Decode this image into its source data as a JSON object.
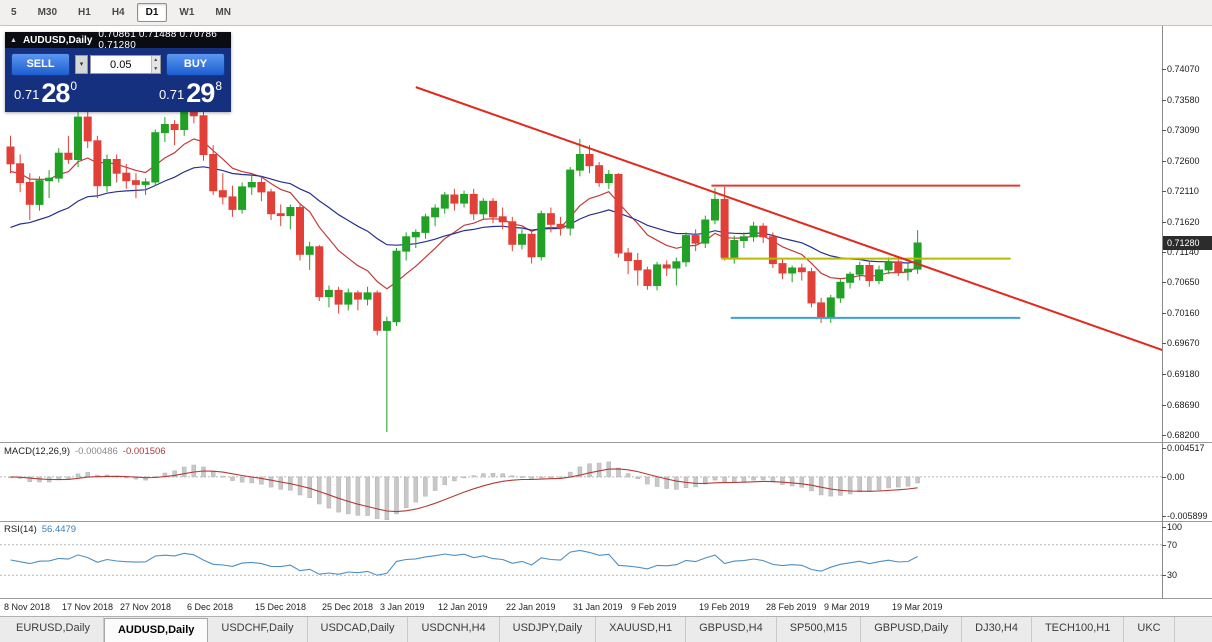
{
  "toolbar": {
    "timeframes": [
      {
        "label": "5",
        "active": false
      },
      {
        "label": "M30",
        "active": false
      },
      {
        "label": "H1",
        "active": false
      },
      {
        "label": "H4",
        "active": false
      },
      {
        "label": "D1",
        "active": true
      },
      {
        "label": "W1",
        "active": false
      },
      {
        "label": "MN",
        "active": false
      }
    ]
  },
  "trade_panel": {
    "symbol": "AUDUSD,Daily",
    "ohlc": "0.70861 0.71488 0.70786 0.71280",
    "sell_label": "SELL",
    "buy_label": "BUY",
    "volume": "0.05",
    "sell_price": {
      "base": "0.71",
      "big": "28",
      "sup": "0"
    },
    "buy_price": {
      "base": "0.71",
      "big": "29",
      "sup": "8"
    }
  },
  "colors": {
    "bull": "#21a126",
    "bear": "#e04038",
    "toolbar_bg": "#f1f0ee",
    "trade_panel_bg": "#15307e",
    "button_blue": "#2f6fd6",
    "badge_bg": "#2c2c2c"
  },
  "chart_data": {
    "type": "candlestick",
    "title": "AUDUSD,Daily",
    "current_price": "0.71280",
    "price_range": {
      "max": 0.7476,
      "min": 0.6809
    },
    "price_axis": [
      "0.74070",
      "0.73580",
      "0.73090",
      "0.72600",
      "0.72110",
      "0.71620",
      "0.71140",
      "0.70650",
      "0.70160",
      "0.69670",
      "0.69180",
      "0.68690",
      "0.68200"
    ],
    "x_labels": [
      [
        0,
        "8 Nov 2018"
      ],
      [
        6,
        "17 Nov 2018"
      ],
      [
        12,
        "27 Nov 2018"
      ],
      [
        19,
        "6 Dec 2018"
      ],
      [
        26,
        "15 Dec 2018"
      ],
      [
        33,
        "25 Dec 2018"
      ],
      [
        39,
        "3 Jan 2019"
      ],
      [
        45,
        "12 Jan 2019"
      ],
      [
        52,
        "22 Jan 2019"
      ],
      [
        59,
        "31 Jan 2019"
      ],
      [
        65,
        "9 Feb 2019"
      ],
      [
        72,
        "19 Feb 2019"
      ],
      [
        79,
        "28 Feb 2019"
      ],
      [
        85,
        "9 Mar 2019"
      ],
      [
        92,
        "19 Mar 2019"
      ]
    ],
    "candles": [
      [
        0.7282,
        0.73,
        0.724,
        0.7255
      ],
      [
        0.7255,
        0.727,
        0.721,
        0.7225
      ],
      [
        0.7225,
        0.724,
        0.7165,
        0.719
      ],
      [
        0.719,
        0.7235,
        0.718,
        0.7228
      ],
      [
        0.7228,
        0.7245,
        0.72,
        0.7232
      ],
      [
        0.7232,
        0.728,
        0.7225,
        0.7272
      ],
      [
        0.7272,
        0.73,
        0.7255,
        0.7262
      ],
      [
        0.7262,
        0.7338,
        0.725,
        0.733
      ],
      [
        0.733,
        0.734,
        0.728,
        0.7292
      ],
      [
        0.7292,
        0.73,
        0.72,
        0.722
      ],
      [
        0.722,
        0.727,
        0.721,
        0.7262
      ],
      [
        0.7262,
        0.727,
        0.7225,
        0.724
      ],
      [
        0.724,
        0.7255,
        0.7215,
        0.7228
      ],
      [
        0.7228,
        0.724,
        0.72,
        0.7222
      ],
      [
        0.7222,
        0.7232,
        0.7205,
        0.7226
      ],
      [
        0.7226,
        0.731,
        0.722,
        0.7305
      ],
      [
        0.7305,
        0.733,
        0.729,
        0.7318
      ],
      [
        0.7318,
        0.7325,
        0.7285,
        0.731
      ],
      [
        0.731,
        0.7355,
        0.73,
        0.7348
      ],
      [
        0.7348,
        0.7365,
        0.732,
        0.7332
      ],
      [
        0.7332,
        0.734,
        0.726,
        0.727
      ],
      [
        0.727,
        0.7285,
        0.7205,
        0.7212
      ],
      [
        0.7212,
        0.724,
        0.719,
        0.7202
      ],
      [
        0.7202,
        0.722,
        0.717,
        0.7182
      ],
      [
        0.7182,
        0.7225,
        0.7175,
        0.7218
      ],
      [
        0.7218,
        0.7237,
        0.7205,
        0.7225
      ],
      [
        0.7225,
        0.7235,
        0.7195,
        0.721
      ],
      [
        0.721,
        0.7215,
        0.7165,
        0.7175
      ],
      [
        0.7175,
        0.719,
        0.7155,
        0.7172
      ],
      [
        0.7172,
        0.719,
        0.715,
        0.7185
      ],
      [
        0.7185,
        0.719,
        0.71,
        0.711
      ],
      [
        0.711,
        0.713,
        0.7085,
        0.7122
      ],
      [
        0.7122,
        0.7125,
        0.7035,
        0.7042
      ],
      [
        0.7042,
        0.706,
        0.7025,
        0.7052
      ],
      [
        0.7052,
        0.7058,
        0.7015,
        0.703
      ],
      [
        0.703,
        0.7055,
        0.702,
        0.7048
      ],
      [
        0.7048,
        0.7052,
        0.702,
        0.7038
      ],
      [
        0.7038,
        0.7058,
        0.7028,
        0.7048
      ],
      [
        0.7048,
        0.7052,
        0.698,
        0.6988
      ],
      [
        0.6988,
        0.701,
        0.6825,
        0.7002
      ],
      [
        0.7002,
        0.712,
        0.6995,
        0.7115
      ],
      [
        0.7115,
        0.7145,
        0.71,
        0.7138
      ],
      [
        0.7138,
        0.715,
        0.712,
        0.7145
      ],
      [
        0.7145,
        0.7175,
        0.7135,
        0.717
      ],
      [
        0.717,
        0.719,
        0.7155,
        0.7184
      ],
      [
        0.7184,
        0.721,
        0.7175,
        0.7205
      ],
      [
        0.7205,
        0.7215,
        0.718,
        0.7192
      ],
      [
        0.7192,
        0.7212,
        0.7185,
        0.7206
      ],
      [
        0.7206,
        0.7215,
        0.7165,
        0.7175
      ],
      [
        0.7175,
        0.72,
        0.7165,
        0.7195
      ],
      [
        0.7195,
        0.72,
        0.716,
        0.717
      ],
      [
        0.717,
        0.7185,
        0.715,
        0.7162
      ],
      [
        0.7162,
        0.717,
        0.7115,
        0.7126
      ],
      [
        0.7126,
        0.715,
        0.7118,
        0.7142
      ],
      [
        0.7142,
        0.7148,
        0.7095,
        0.7106
      ],
      [
        0.7106,
        0.718,
        0.71,
        0.7175
      ],
      [
        0.7175,
        0.7185,
        0.7145,
        0.7158
      ],
      [
        0.7158,
        0.717,
        0.714,
        0.7152
      ],
      [
        0.7152,
        0.725,
        0.714,
        0.7245
      ],
      [
        0.7245,
        0.7295,
        0.7235,
        0.727
      ],
      [
        0.727,
        0.7285,
        0.724,
        0.7252
      ],
      [
        0.7252,
        0.7258,
        0.7218,
        0.7225
      ],
      [
        0.7225,
        0.7245,
        0.7215,
        0.7238
      ],
      [
        0.7238,
        0.724,
        0.7105,
        0.7112
      ],
      [
        0.7112,
        0.712,
        0.7078,
        0.71
      ],
      [
        0.71,
        0.7112,
        0.706,
        0.7085
      ],
      [
        0.7085,
        0.709,
        0.7053,
        0.706
      ],
      [
        0.706,
        0.7098,
        0.7052,
        0.7093
      ],
      [
        0.7093,
        0.71,
        0.7075,
        0.7088
      ],
      [
        0.7088,
        0.7105,
        0.706,
        0.7098
      ],
      [
        0.7098,
        0.7145,
        0.709,
        0.714
      ],
      [
        0.714,
        0.715,
        0.7115,
        0.7128
      ],
      [
        0.7128,
        0.7172,
        0.712,
        0.7165
      ],
      [
        0.7165,
        0.7216,
        0.7158,
        0.7198
      ],
      [
        0.7198,
        0.7218,
        0.71,
        0.7105
      ],
      [
        0.7105,
        0.714,
        0.7095,
        0.7132
      ],
      [
        0.7132,
        0.7145,
        0.712,
        0.7138
      ],
      [
        0.7138,
        0.7162,
        0.713,
        0.7155
      ],
      [
        0.7155,
        0.716,
        0.7128,
        0.7138
      ],
      [
        0.7138,
        0.7145,
        0.7088,
        0.7095
      ],
      [
        0.7095,
        0.7102,
        0.707,
        0.708
      ],
      [
        0.708,
        0.7092,
        0.7065,
        0.7088
      ],
      [
        0.7088,
        0.7095,
        0.7068,
        0.7082
      ],
      [
        0.7082,
        0.7088,
        0.7025,
        0.7032
      ],
      [
        0.7032,
        0.704,
        0.7,
        0.7008
      ],
      [
        0.7008,
        0.7045,
        0.7,
        0.704
      ],
      [
        0.704,
        0.707,
        0.7032,
        0.7065
      ],
      [
        0.7065,
        0.7082,
        0.7055,
        0.7078
      ],
      [
        0.7078,
        0.7098,
        0.7068,
        0.7092
      ],
      [
        0.7092,
        0.7098,
        0.7058,
        0.7068
      ],
      [
        0.7068,
        0.7092,
        0.7062,
        0.7085
      ],
      [
        0.7085,
        0.7105,
        0.7078,
        0.7098
      ],
      [
        0.7098,
        0.7105,
        0.7075,
        0.7082
      ],
      [
        0.7082,
        0.7095,
        0.7068,
        0.7086
      ],
      [
        0.70861,
        0.71488,
        0.70786,
        0.7128
      ]
    ],
    "moving_averages": [
      {
        "period": 10,
        "seed": 0.724,
        "color": "#c23b3b"
      },
      {
        "period": 26,
        "seed": 0.7145,
        "color": "#26318e"
      }
    ],
    "hlines": [
      {
        "price": 0.722,
        "from": 73,
        "to": 105,
        "color": "#e23b2e",
        "width": 2
      },
      {
        "price": 0.7103,
        "from": 74,
        "to": 104,
        "color": "#b8bb00",
        "width": 2
      },
      {
        "price": 0.7008,
        "from": 75,
        "to": 105,
        "color": "#3aa0dc",
        "width": 2
      }
    ],
    "trendline": {
      "from_bar": 42,
      "from_price": 0.7378,
      "to_bar": 120,
      "to_price": 0.6953,
      "color": "#e02a1e",
      "width": 2
    },
    "macd": {
      "label": "MACD(12,26,9)",
      "value_main": "-0.000486",
      "value_signal": "-0.001506",
      "axis": [
        "0.004517",
        "0.00",
        "-0.005899"
      ],
      "range": {
        "min": -0.0065,
        "max": 0.005
      },
      "bar_color": "#c8c8c8",
      "signal_color": "#b33a3a"
    },
    "rsi": {
      "label": "RSI(14)",
      "value": "56.4479",
      "axis": [
        "100",
        "70",
        "30"
      ],
      "levels": [
        70,
        30
      ],
      "line_color": "#4d8fc4"
    }
  },
  "tabs": [
    {
      "label": "EURUSD,Daily",
      "active": false
    },
    {
      "label": "AUDUSD,Daily",
      "active": true
    },
    {
      "label": "USDCHF,Daily",
      "active": false
    },
    {
      "label": "USDCAD,Daily",
      "active": false
    },
    {
      "label": "USDCNH,H4",
      "active": false
    },
    {
      "label": "USDJPY,Daily",
      "active": false
    },
    {
      "label": "XAUUSD,H1",
      "active": false
    },
    {
      "label": "GBPUSD,H4",
      "active": false
    },
    {
      "label": "SP500,M15",
      "active": false
    },
    {
      "label": "GBPUSD,Daily",
      "active": false
    },
    {
      "label": "DJ30,H4",
      "active": false
    },
    {
      "label": "TECH100,H1",
      "active": false
    },
    {
      "label": "UKC",
      "active": false
    }
  ]
}
